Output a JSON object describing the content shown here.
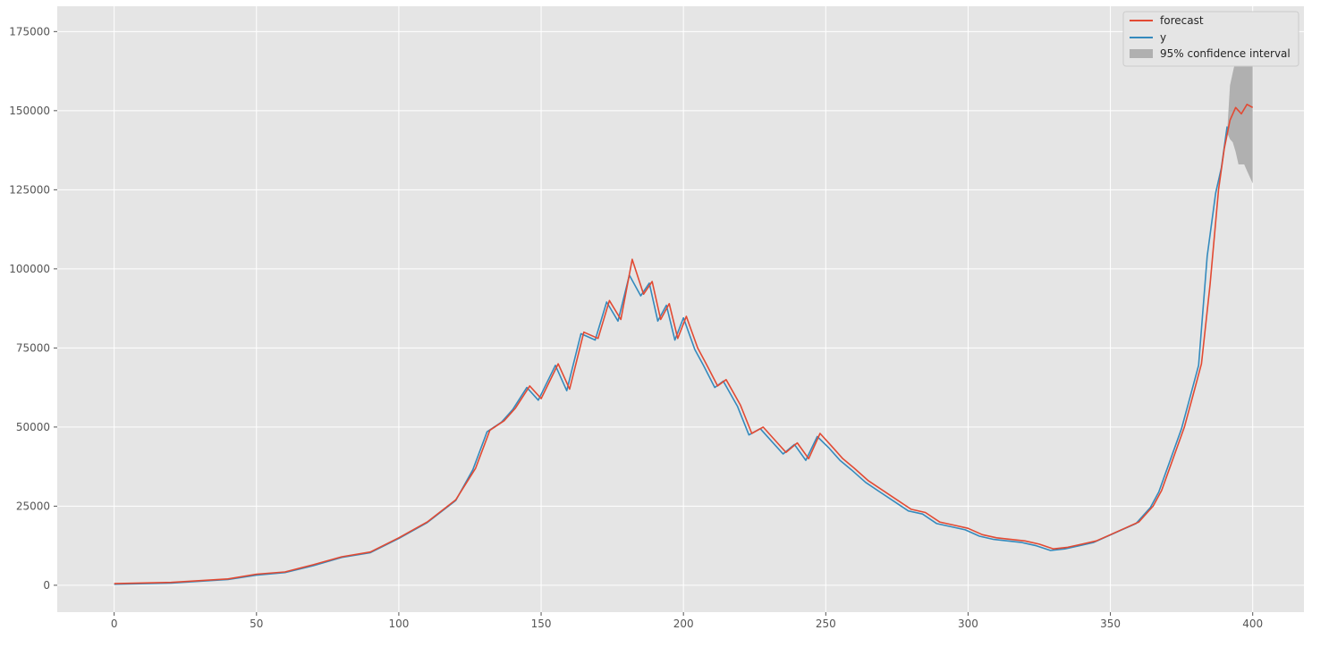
{
  "chart_data": {
    "type": "line",
    "title": "",
    "xlabel": "",
    "ylabel": "",
    "xlim": [
      -20,
      418
    ],
    "ylim": [
      -8500,
      183000
    ],
    "x_ticks": [
      0,
      50,
      100,
      150,
      200,
      250,
      300,
      350,
      400
    ],
    "y_ticks": [
      0,
      25000,
      50000,
      75000,
      100000,
      125000,
      150000,
      175000
    ],
    "x_tick_labels": [
      "0",
      "50",
      "100",
      "150",
      "200",
      "250",
      "300",
      "350",
      "400"
    ],
    "y_tick_labels": [
      "0",
      "25000",
      "50000",
      "75000",
      "100000",
      "125000",
      "150000",
      "175000"
    ],
    "grid": true,
    "legend_position": "top-right",
    "series": [
      {
        "name": "forecast",
        "color": "#e24a33",
        "x": [
          0,
          20,
          40,
          50,
          60,
          70,
          80,
          90,
          100,
          110,
          120,
          127,
          132,
          137,
          141,
          146,
          150,
          156,
          160,
          165,
          170,
          174,
          178,
          182,
          186,
          189,
          192,
          195,
          198,
          201,
          205,
          208,
          212,
          215,
          220,
          224,
          228,
          232,
          236,
          240,
          244,
          248,
          252,
          256,
          260,
          265,
          270,
          275,
          280,
          285,
          290,
          295,
          300,
          305,
          310,
          315,
          320,
          325,
          330,
          335,
          340,
          345,
          350,
          355,
          360,
          365,
          368,
          372,
          376,
          379,
          382,
          385,
          388,
          390,
          392,
          394,
          396,
          398,
          400
        ],
        "values": [
          500,
          900,
          2000,
          3500,
          4200,
          6500,
          9000,
          10500,
          15000,
          20000,
          27000,
          37000,
          49000,
          52000,
          56000,
          63000,
          59000,
          70000,
          62000,
          80000,
          78000,
          90000,
          84000,
          103000,
          92000,
          96000,
          84000,
          89000,
          78000,
          85000,
          75000,
          70000,
          63000,
          65000,
          57000,
          48000,
          50000,
          46000,
          42000,
          45000,
          40000,
          48000,
          44000,
          40000,
          37000,
          33000,
          30000,
          27000,
          24000,
          23000,
          20000,
          19000,
          18000,
          16000,
          15000,
          14500,
          14000,
          13000,
          11500,
          12000,
          13000,
          14000,
          16000,
          18000,
          20000,
          25000,
          30000,
          40000,
          50000,
          60000,
          70000,
          95000,
          125000,
          138000,
          147000,
          151000,
          149000,
          152000,
          151000
        ]
      },
      {
        "name": "y",
        "color": "#348abd",
        "x": [
          0,
          20,
          40,
          50,
          60,
          70,
          80,
          90,
          100,
          110,
          120,
          126,
          131,
          136,
          140,
          145,
          149,
          155,
          159,
          164,
          169,
          173,
          177,
          181,
          185,
          188,
          191,
          194,
          197,
          200,
          204,
          207,
          211,
          214,
          219,
          223,
          227,
          231,
          235,
          239,
          243,
          247,
          251,
          255,
          259,
          264,
          269,
          274,
          279,
          284,
          289,
          294,
          299,
          304,
          309,
          314,
          319,
          324,
          329,
          334,
          339,
          344,
          349,
          354,
          359,
          364,
          367,
          371,
          375,
          378,
          381,
          384,
          387,
          389,
          391
        ],
        "values": [
          300,
          700,
          1800,
          3200,
          4000,
          6200,
          8800,
          10300,
          14800,
          19800,
          26800,
          36500,
          48500,
          51500,
          55500,
          62500,
          58500,
          69500,
          61500,
          79500,
          77500,
          89500,
          83500,
          98000,
          91500,
          95500,
          83500,
          88500,
          77500,
          84500,
          74500,
          69500,
          62500,
          64500,
          56500,
          47500,
          49500,
          45500,
          41500,
          44500,
          39500,
          47000,
          43500,
          39500,
          36500,
          32500,
          29500,
          26500,
          23500,
          22500,
          19500,
          18500,
          17500,
          15500,
          14500,
          14000,
          13500,
          12500,
          11000,
          11500,
          12500,
          13500,
          15500,
          17500,
          19500,
          24500,
          29500,
          39500,
          49500,
          59500,
          69500,
          104000,
          124000,
          132000,
          145000
        ]
      }
    ],
    "confidence_interval": {
      "name": "95% confidence interval",
      "color": "#b0b0b0",
      "x": [
        391,
        392,
        393,
        394,
        395,
        396,
        397,
        398,
        399,
        400
      ],
      "upper": [
        143000,
        158000,
        162000,
        166000,
        167000,
        168000,
        170000,
        172000,
        173000,
        174000
      ],
      "lower": [
        143000,
        141000,
        140000,
        137000,
        133000,
        133000,
        133000,
        131000,
        129000,
        127000
      ]
    }
  }
}
